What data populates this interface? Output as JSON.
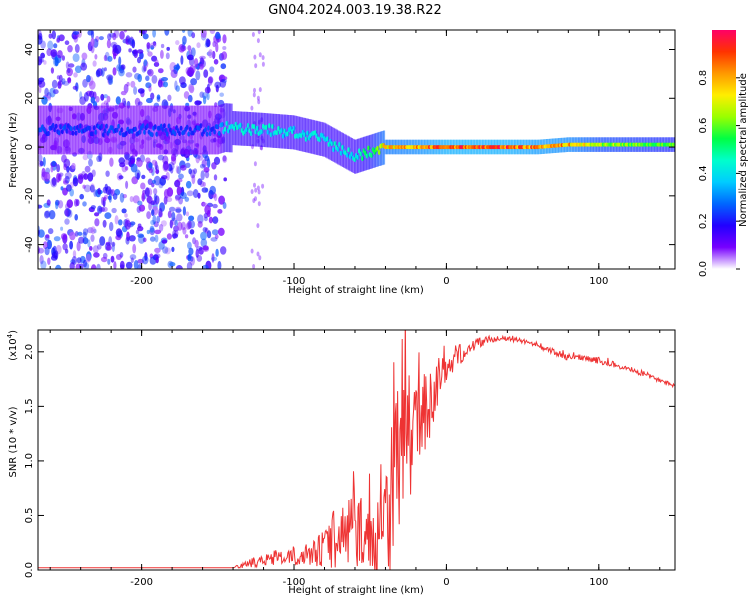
{
  "title": "GN04.2024.003.19.38.R22",
  "colors": {
    "line": "#ee3333",
    "colorbar_stops": [
      "#ff0066",
      "#ff3300",
      "#ff9900",
      "#ffee00",
      "#99ff00",
      "#00ff44",
      "#00ffcc",
      "#00ccff",
      "#0066ff",
      "#2200ff",
      "#7700ff",
      "#ffffff"
    ]
  },
  "chart_data": [
    {
      "type": "heatmap",
      "title": "",
      "xlabel": "Height of straight line (km)",
      "ylabel": "Frequency (Hz)",
      "xlim": [
        -268,
        150
      ],
      "ylim": [
        -50,
        48
      ],
      "x_ticks": [
        -200,
        -100,
        0,
        100
      ],
      "x_tick_labels": [
        "-200",
        "-100",
        "0",
        "100"
      ],
      "y_ticks": [
        40,
        20,
        0,
        -20,
        -40
      ],
      "y_tick_labels": [
        "40",
        "20",
        "0",
        "-20",
        "-40"
      ],
      "colorbar": {
        "label": "Normalized spectral amplitude",
        "range": [
          0,
          1
        ],
        "ticks": [
          0.0,
          0.2,
          0.4,
          0.6,
          0.8
        ],
        "tick_labels": [
          "0.0",
          "0.2",
          "0.4",
          "0.6",
          "0.8"
        ]
      },
      "ridge": {
        "x": [
          -268,
          -200,
          -150,
          -145,
          -120,
          -100,
          -80,
          -60,
          -50,
          -40,
          -20,
          0,
          40,
          60,
          80,
          100,
          150
        ],
        "frequency": [
          7,
          7,
          7,
          8,
          7,
          6,
          3,
          -4,
          -2,
          0,
          0,
          0,
          0,
          0,
          1,
          1,
          1
        ],
        "amplitude": [
          0.25,
          0.25,
          0.25,
          0.45,
          0.45,
          0.45,
          0.45,
          0.45,
          0.55,
          0.8,
          0.85,
          0.95,
          0.95,
          0.9,
          0.85,
          0.7,
          0.6
        ]
      },
      "noise_region_x": [
        -268,
        -145
      ]
    },
    {
      "type": "line",
      "title": "",
      "xlabel": "Height of straight line (km)",
      "ylabel": "SNR (10 * v/v)",
      "y_scale_note": "(x10",
      "y_scale_exp": "4",
      "xlim": [
        -268,
        150
      ],
      "ylim": [
        0,
        2.2
      ],
      "x_ticks": [
        -200,
        -100,
        0,
        100
      ],
      "x_tick_labels": [
        "-200",
        "-100",
        "0",
        "100"
      ],
      "y_ticks": [
        0.0,
        0.5,
        1.0,
        1.5,
        2.0
      ],
      "y_tick_labels": [
        "0.0",
        "0.5",
        "1.0",
        "1.5",
        "2.0"
      ],
      "series": [
        {
          "x": [
            -268,
            -140,
            -130,
            -120,
            -110,
            -100,
            -90,
            -80,
            -70,
            -60,
            -55,
            -50,
            -45,
            -40,
            -35,
            -30,
            -25,
            -20,
            -15,
            -10,
            -5,
            0,
            10,
            20,
            30,
            40,
            50,
            60,
            70,
            80,
            90,
            100,
            110,
            120,
            130,
            140,
            150
          ],
          "y": [
            0.02,
            0.02,
            0.05,
            0.1,
            0.1,
            0.12,
            0.15,
            0.2,
            0.3,
            0.4,
            0.35,
            0.25,
            0.2,
            0.55,
            0.8,
            1.1,
            1.2,
            1.3,
            1.4,
            1.55,
            1.75,
            1.85,
            2.0,
            2.08,
            2.12,
            2.12,
            2.1,
            2.05,
            2.0,
            1.95,
            1.95,
            1.92,
            1.88,
            1.84,
            1.79,
            1.74,
            1.69
          ],
          "noise": [
            0,
            0,
            0.04,
            0.06,
            0.06,
            0.08,
            0.1,
            0.18,
            0.3,
            0.4,
            0.3,
            0.3,
            0.3,
            0.6,
            0.8,
            0.8,
            0.6,
            0.45,
            0.35,
            0.3,
            0.2,
            0.15,
            0.1,
            0.05,
            0.03,
            0.02,
            0.02,
            0.02,
            0.03,
            0.03,
            0.03,
            0.03,
            0.03,
            0.02,
            0.02,
            0.02,
            0.02
          ]
        }
      ]
    }
  ]
}
